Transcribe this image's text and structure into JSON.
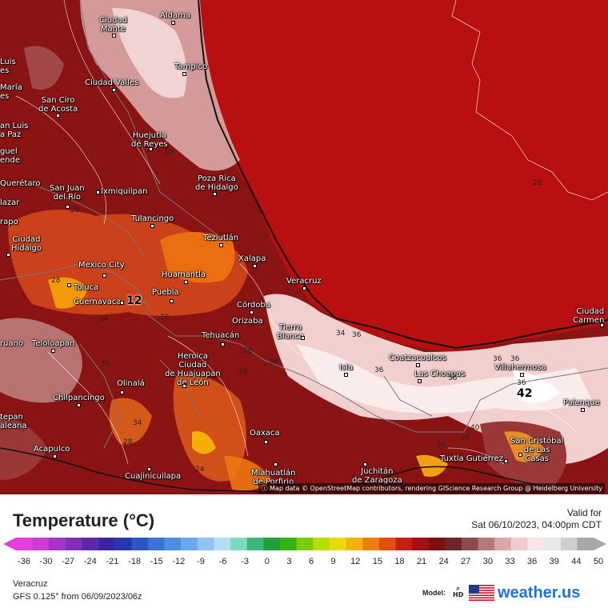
{
  "map": {
    "attribution": "Map data © OpenStreetMap contributors, rendering GIScience Research Group @ Heidelberg University",
    "cities": [
      {
        "name": "Ciudad\nMante",
        "key": "mante"
      },
      {
        "name": "Aldama",
        "key": "aldama"
      },
      {
        "name": "Luis\nes",
        "key": "luis"
      },
      {
        "name": "Tampico",
        "key": "tampico"
      },
      {
        "name": "María\nes",
        "key": "maria"
      },
      {
        "name": "Ciudad Valles",
        "key": "valles"
      },
      {
        "name": "San Ciro\nde Acosta",
        "key": "sanciro"
      },
      {
        "name": "an Luis\na Paz",
        "key": "sanluis"
      },
      {
        "name": "Huejutla\nde Reyes",
        "key": "huejutla"
      },
      {
        "name": "guel\nende",
        "key": "miguel"
      },
      {
        "name": "Poza Rica\nde Hidalgo",
        "key": "pozarica"
      },
      {
        "name": "Querétaro",
        "key": "queretaro"
      },
      {
        "name": "San Juan\ndel Río",
        "key": "sanjuan"
      },
      {
        "name": "Ixmiquilpan",
        "key": "ixmiquilpan"
      },
      {
        "name": "lazar",
        "key": "salazar"
      },
      {
        "name": "Tulancingo",
        "key": "tulancingo"
      },
      {
        "name": "rapo",
        "key": "rapo"
      },
      {
        "name": "Teziutlán",
        "key": "teziutlan"
      },
      {
        "name": "Ciudad\nHidalgo",
        "key": "cdhidalgo"
      },
      {
        "name": "Xalapa",
        "key": "xalapa"
      },
      {
        "name": "Mexico City",
        "key": "mexicocity"
      },
      {
        "name": "Huamantla",
        "key": "huamantla"
      },
      {
        "name": "Veracruz",
        "key": "veracruz"
      },
      {
        "name": "Toluca",
        "key": "toluca"
      },
      {
        "name": "Puebla",
        "key": "puebla"
      },
      {
        "name": "Cuernavaca",
        "key": "cuernavaca"
      },
      {
        "name": "Córdoba",
        "key": "cordoba"
      },
      {
        "name": "Orizaba",
        "key": "orizaba"
      },
      {
        "name": "Ciudad\nCarmen",
        "key": "carmen"
      },
      {
        "name": "Tierra\nBlanca",
        "key": "tierrablanca"
      },
      {
        "name": "Tehuacán",
        "key": "tehuacan"
      },
      {
        "name": "Teloloapan",
        "key": "teloloapan"
      },
      {
        "name": "ruano",
        "key": "ruano"
      },
      {
        "name": "Coatzacoalcos",
        "key": "coatza"
      },
      {
        "name": "Heroica\nCiudad\nde Huajuapan\nde León",
        "key": "huajuapan"
      },
      {
        "name": "Isla",
        "key": "isla"
      },
      {
        "name": "Las Choapas",
        "key": "choapas"
      },
      {
        "name": "Villahermosa",
        "key": "villahermosa"
      },
      {
        "name": "Olinalá",
        "key": "olinala"
      },
      {
        "name": "Chilpancingo",
        "key": "chilpancingo"
      },
      {
        "name": "Palenque",
        "key": "palenque"
      },
      {
        "name": "tepan\naleana",
        "key": "tecpan"
      },
      {
        "name": "Oaxaca",
        "key": "oaxaca"
      },
      {
        "name": "San Cristóbal\nde Las\nCasas",
        "key": "sancristobal"
      },
      {
        "name": "Acapulco",
        "key": "acapulco"
      },
      {
        "name": "Tuxtla Gutiérrez",
        "key": "tuxtla"
      },
      {
        "name": "Juchitán\nde Zaragoza",
        "key": "juchitan"
      },
      {
        "name": "Miahuatlán\nde Porfirio",
        "key": "miahuatlan"
      },
      {
        "name": "Cuajinicuilapa",
        "key": "cuaji"
      }
    ],
    "isotherm_labels": [
      "28",
      "28",
      "38",
      "28",
      "26",
      "34",
      "36",
      "26",
      "34",
      "36",
      "36",
      "28",
      "34",
      "28",
      "36",
      "38",
      "36",
      "36",
      "36",
      "40",
      "38",
      "36",
      "24"
    ],
    "extremes": {
      "min": "12",
      "max": "42"
    }
  },
  "legend": {
    "title": "Temperature (°C)",
    "valid_label": "Valid for",
    "valid_time": "Sat 06/10/2023, 04:00pm CDT",
    "ticks": [
      "-36",
      "-30",
      "-27",
      "-24",
      "-21",
      "-18",
      "-15",
      "-12",
      "-9",
      "-6",
      "-3",
      "0",
      "3",
      "6",
      "9",
      "12",
      "15",
      "18",
      "21",
      "24",
      "27",
      "30",
      "33",
      "36",
      "39",
      "44",
      "50"
    ],
    "colors": [
      "#e43ee0",
      "#c93ad6",
      "#a336c8",
      "#7f2fb8",
      "#5b29a8",
      "#3c25a0",
      "#2838b0",
      "#2d55c8",
      "#3b72d8",
      "#4d8ee4",
      "#6aa8ec",
      "#8ec2f2",
      "#b9dcf5",
      "#7fd8c2",
      "#3cb878",
      "#1fa03a",
      "#34b214",
      "#7ccc0c",
      "#b8dc08",
      "#eadb08",
      "#f5b006",
      "#ef7d0c",
      "#e24e10",
      "#c81e12",
      "#a40f14",
      "#7a1212",
      "#6b2727",
      "#8d4c4c",
      "#b47a7a",
      "#d8a8a8",
      "#f0cccc",
      "#f8e6e6",
      "#e8e8e8",
      "#cfcfcf",
      "#a8a8a8"
    ]
  },
  "footer": {
    "location": "Veracruz",
    "model": "GFS 0.125° from  06/09/2023/06z",
    "model_label": "Model:",
    "hd_label": "HD",
    "brand": "weather.us"
  }
}
